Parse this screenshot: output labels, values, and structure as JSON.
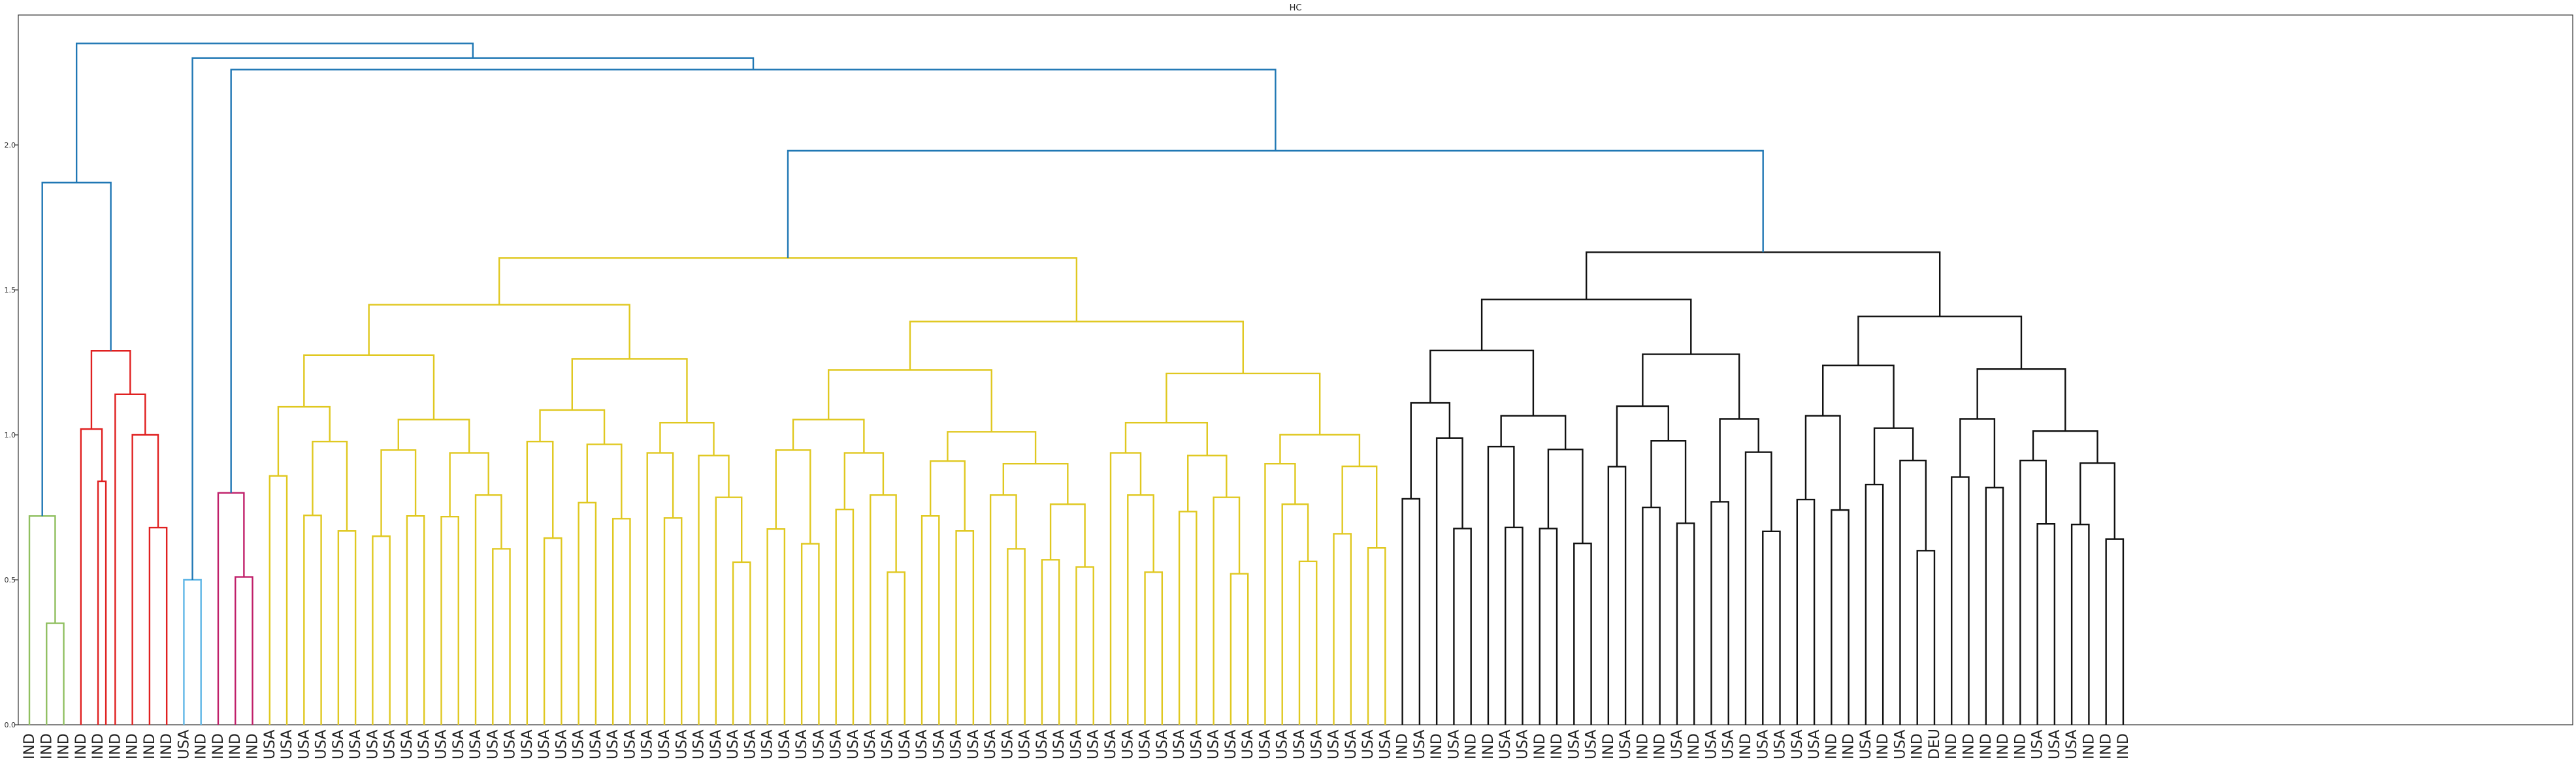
{
  "chart_data": {
    "type": "dendrogram",
    "title": "HC",
    "xlabel": "",
    "ylabel": "",
    "ylim": [
      0,
      2.35
    ],
    "y_ticks": [
      "0.0",
      "0.5",
      "1.0",
      "1.5",
      "2.0"
    ],
    "y_tick_values": [
      0,
      0.5,
      1.0,
      1.5,
      2.0
    ],
    "cluster_colors": {
      "green": "#8fbf5f",
      "red": "#e02020",
      "cyan": "#5fb6e6",
      "magenta": "#c0206a",
      "yellow": "#e0c820",
      "black": "#111111",
      "above_threshold": "#1f77b4"
    },
    "leaves": [
      "IND",
      "IND",
      "IND",
      "IND",
      "IND",
      "IND",
      "IND",
      "IND",
      "IND",
      "USA",
      "IND",
      "IND",
      "IND",
      "IND",
      "USA",
      "USA",
      "USA",
      "USA",
      "USA",
      "USA",
      "USA",
      "USA",
      "USA",
      "USA",
      "USA",
      "USA",
      "USA",
      "USA",
      "USA",
      "USA",
      "USA",
      "USA",
      "USA",
      "USA",
      "USA",
      "USA",
      "USA",
      "USA",
      "USA",
      "USA",
      "USA",
      "USA",
      "USA",
      "USA",
      "USA",
      "USA",
      "USA",
      "USA",
      "USA",
      "USA",
      "USA",
      "USA",
      "USA",
      "USA",
      "USA",
      "USA",
      "USA",
      "USA",
      "USA",
      "USA",
      "USA",
      "USA",
      "USA",
      "USA",
      "USA",
      "USA",
      "USA",
      "USA",
      "USA",
      "USA",
      "USA",
      "USA",
      "USA",
      "USA",
      "USA",
      "USA",
      "USA",
      "USA",
      "USA",
      "USA",
      "IND",
      "USA",
      "IND",
      "USA",
      "IND",
      "IND",
      "USA",
      "USA",
      "IND",
      "IND",
      "USA",
      "USA",
      "IND",
      "USA",
      "IND",
      "IND",
      "USA",
      "IND",
      "USA",
      "USA",
      "IND",
      "USA",
      "USA",
      "USA",
      "USA",
      "IND",
      "IND",
      "USA",
      "IND",
      "USA",
      "IND",
      "DEU",
      "IND",
      "IND",
      "IND",
      "IND",
      "IND",
      "USA",
      "USA",
      "USA",
      "IND",
      "IND",
      "IND"
    ],
    "clusters": [
      {
        "color": "green",
        "first": 0,
        "last": 2
      },
      {
        "color": "red",
        "first": 3,
        "last": 8
      },
      {
        "color": "cyan",
        "first": 9,
        "last": 10
      },
      {
        "color": "magenta",
        "first": 11,
        "last": 13
      },
      {
        "color": "yellow",
        "first": 14,
        "last": 79
      },
      {
        "color": "black",
        "first": 80,
        "last": 122
      }
    ],
    "merges": [
      {
        "color": "green",
        "height": 0.35,
        "children": [
          {
            "leaf": 1
          },
          {
            "leaf": 2
          }
        ]
      },
      {
        "color": "green",
        "height": 0.72,
        "children": [
          {
            "leaf": 0
          },
          {
            "m": 0
          }
        ]
      },
      {
        "color": "red",
        "height": 0.68,
        "children": [
          {
            "leaf": 7
          },
          {
            "leaf": 8
          }
        ]
      },
      {
        "color": "red",
        "height": 1.0,
        "children": [
          {
            "leaf": 6
          },
          {
            "m": 2
          }
        ]
      },
      {
        "color": "red",
        "height": 1.14,
        "children": [
          {
            "leaf": 5
          },
          {
            "m": 3
          }
        ]
      },
      {
        "color": "red",
        "height": 0.84,
        "children": [
          {
            "leaf": 3
          },
          {
            "leaf": 4
          }
        ]
      },
      {
        "color": "red",
        "height": 1.02,
        "children": [
          {
            "leaf": 3
          },
          {
            "leaf": 4
          }
        ],
        "useMerge": 5
      },
      {
        "color": "red",
        "height": 1.29,
        "children": [
          {
            "m": 6
          },
          {
            "m": 4
          }
        ]
      },
      {
        "color": "cyan",
        "height": 0.5,
        "children": [
          {
            "leaf": 9
          },
          {
            "leaf": 10
          }
        ]
      },
      {
        "color": "magenta",
        "height": 0.51,
        "children": [
          {
            "leaf": 12
          },
          {
            "leaf": 13
          }
        ]
      },
      {
        "color": "magenta",
        "height": 0.8,
        "children": [
          {
            "leaf": 11
          },
          {
            "m": 9
          }
        ]
      },
      {
        "color": "above_threshold",
        "height": 1.87,
        "children": [
          {
            "m": 1
          },
          {
            "m": 7
          }
        ]
      },
      {
        "color": "above_threshold",
        "height": 2.35,
        "children": [
          {
            "m": 11
          },
          {
            "top": "right"
          }
        ]
      }
    ],
    "top_links": [
      {
        "height": 2.35,
        "from": "green-red",
        "to": "rest"
      },
      {
        "height": 2.3,
        "from": "cyan",
        "to": "magenta-yellow-black"
      },
      {
        "height": 2.26,
        "from": "magenta",
        "to": "yellow-black"
      },
      {
        "height": 1.98,
        "from": "yellow",
        "to": "black"
      }
    ]
  }
}
